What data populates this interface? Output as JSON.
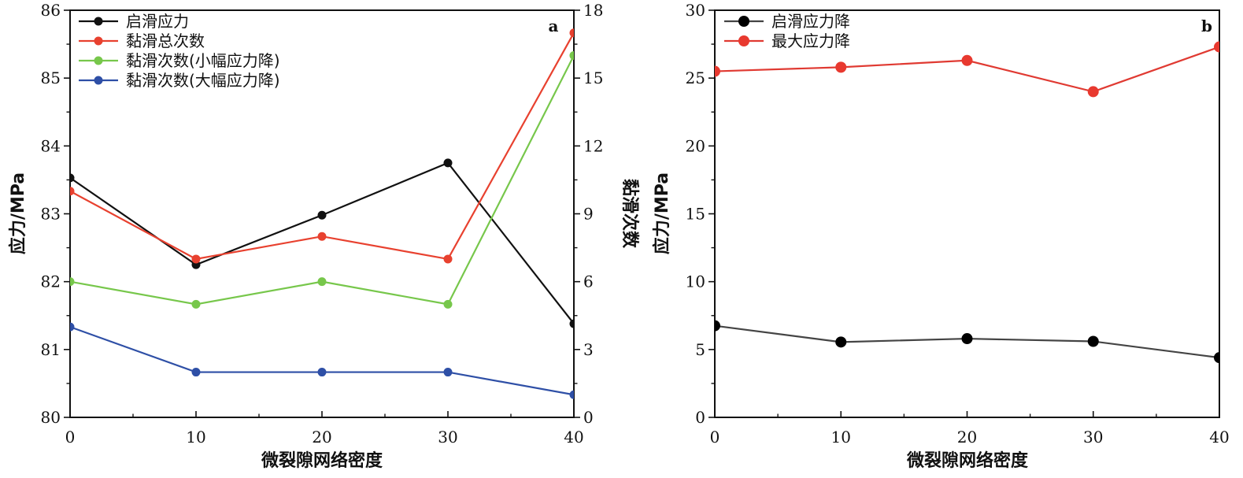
{
  "chart_data": [
    {
      "panel": "a",
      "type": "line",
      "x": [
        0,
        10,
        20,
        30,
        40
      ],
      "xlim": [
        0,
        40
      ],
      "xticks": [
        0,
        10,
        20,
        30,
        40
      ],
      "xlabel": "微裂隙网络密度",
      "ylabel": "应力/MPa",
      "ylim": [
        80,
        86
      ],
      "yticks": [
        80,
        81,
        82,
        83,
        84,
        85,
        86
      ],
      "y2label": "黏滑次数",
      "y2lim": [
        0,
        18
      ],
      "y2ticks": [
        0,
        3,
        6,
        9,
        12,
        15,
        18
      ],
      "grid": false,
      "legend_position": "top-left",
      "series": [
        {
          "name": "启滑应力",
          "axis": "left",
          "color": "#111111",
          "values": [
            83.53,
            82.25,
            82.98,
            83.75,
            81.38
          ]
        },
        {
          "name": "黏滑总次数",
          "axis": "right",
          "color": "#e8412f",
          "values": [
            10,
            7,
            8,
            7,
            17
          ]
        },
        {
          "name": "黏滑次数(小幅应力降)",
          "axis": "right",
          "color": "#77c74b",
          "values": [
            6,
            5,
            6,
            5,
            16
          ]
        },
        {
          "name": "黏滑次数(大幅应力降)",
          "axis": "right",
          "color": "#2e4fa6",
          "values": [
            4,
            2,
            2,
            2,
            1
          ]
        }
      ]
    },
    {
      "panel": "b",
      "type": "line",
      "x": [
        0,
        10,
        20,
        30,
        40
      ],
      "xlim": [
        0,
        40
      ],
      "xticks": [
        0,
        10,
        20,
        30,
        40
      ],
      "xlabel": "微裂隙网络密度",
      "ylabel": "应力/MPa",
      "ylim": [
        0,
        30
      ],
      "yticks": [
        0,
        5,
        10,
        15,
        20,
        25,
        30
      ],
      "grid": false,
      "legend_position": "top-left",
      "series": [
        {
          "name": "启滑应力降",
          "axis": "left",
          "color": "#444444",
          "marker": "#000000",
          "values": [
            6.75,
            5.55,
            5.8,
            5.6,
            4.4
          ]
        },
        {
          "name": "最大应力降",
          "axis": "left",
          "color": "#e03a32",
          "marker": "#e8392f",
          "values": [
            25.5,
            25.8,
            26.3,
            24.0,
            27.3
          ]
        }
      ]
    }
  ]
}
